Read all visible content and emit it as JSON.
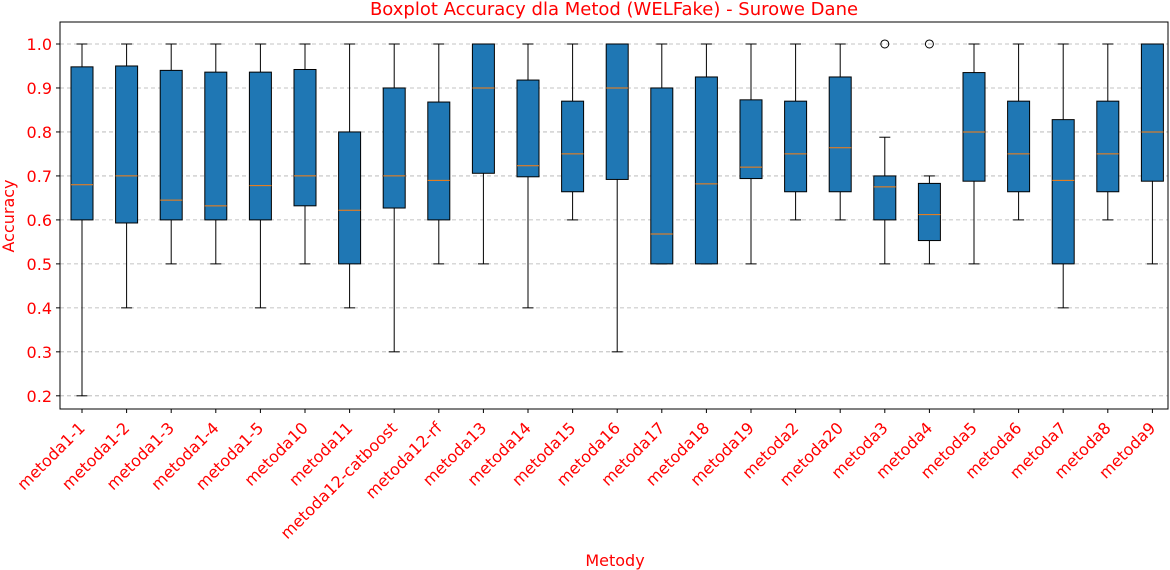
{
  "chart_data": {
    "type": "boxplot",
    "title": "Boxplot Accuracy dla Metod (WELFake) - Surowe Dane",
    "xlabel": "Metody",
    "ylabel": "Accuracy",
    "ylim": [
      0.17,
      1.05
    ],
    "yticks": [
      0.2,
      0.3,
      0.4,
      0.5,
      0.6,
      0.7,
      0.8,
      0.9,
      1.0
    ],
    "ytick_labels": [
      "0.2",
      "0.3",
      "0.4",
      "0.5",
      "0.6",
      "0.7",
      "0.8",
      "0.9",
      "1.0"
    ],
    "grid": "horizontal-dashed",
    "box_color": "#1f77b4",
    "median_color": "#ff7f0e",
    "text_color": "#ff0000",
    "categories": [
      "metoda1-1",
      "metoda1-2",
      "metoda1-3",
      "metoda1-4",
      "metoda1-5",
      "metoda10",
      "metoda11",
      "metoda12-catboost",
      "metoda12-rf",
      "metoda13",
      "metoda14",
      "metoda15",
      "metoda16",
      "metoda17",
      "metoda18",
      "metoda19",
      "metoda2",
      "metoda20",
      "metoda3",
      "metoda4",
      "metoda5",
      "metoda6",
      "metoda7",
      "metoda8",
      "metoda9"
    ],
    "boxes": [
      {
        "whislo": 0.2,
        "q1": 0.6,
        "med": 0.68,
        "q3": 0.948,
        "whishi": 1.0,
        "fliers": []
      },
      {
        "whislo": 0.4,
        "q1": 0.593,
        "med": 0.7,
        "q3": 0.95,
        "whishi": 1.0,
        "fliers": []
      },
      {
        "whislo": 0.5,
        "q1": 0.6,
        "med": 0.645,
        "q3": 0.94,
        "whishi": 1.0,
        "fliers": []
      },
      {
        "whislo": 0.5,
        "q1": 0.6,
        "med": 0.632,
        "q3": 0.936,
        "whishi": 1.0,
        "fliers": []
      },
      {
        "whislo": 0.4,
        "q1": 0.6,
        "med": 0.678,
        "q3": 0.936,
        "whishi": 1.0,
        "fliers": []
      },
      {
        "whislo": 0.5,
        "q1": 0.632,
        "med": 0.7,
        "q3": 0.942,
        "whishi": 1.0,
        "fliers": []
      },
      {
        "whislo": 0.4,
        "q1": 0.5,
        "med": 0.622,
        "q3": 0.8,
        "whishi": 1.0,
        "fliers": []
      },
      {
        "whislo": 0.3,
        "q1": 0.627,
        "med": 0.7,
        "q3": 0.9,
        "whishi": 1.0,
        "fliers": []
      },
      {
        "whislo": 0.5,
        "q1": 0.6,
        "med": 0.69,
        "q3": 0.868,
        "whishi": 1.0,
        "fliers": []
      },
      {
        "whislo": 0.5,
        "q1": 0.706,
        "med": 0.9,
        "q3": 1.0,
        "whishi": 1.0,
        "fliers": []
      },
      {
        "whislo": 0.4,
        "q1": 0.698,
        "med": 0.723,
        "q3": 0.918,
        "whishi": 1.0,
        "fliers": []
      },
      {
        "whislo": 0.6,
        "q1": 0.664,
        "med": 0.75,
        "q3": 0.87,
        "whishi": 1.0,
        "fliers": []
      },
      {
        "whislo": 0.3,
        "q1": 0.692,
        "med": 0.9,
        "q3": 1.0,
        "whishi": 1.0,
        "fliers": []
      },
      {
        "whislo": 0.5,
        "q1": 0.5,
        "med": 0.568,
        "q3": 0.9,
        "whishi": 1.0,
        "fliers": []
      },
      {
        "whislo": 0.5,
        "q1": 0.5,
        "med": 0.682,
        "q3": 0.925,
        "whishi": 1.0,
        "fliers": []
      },
      {
        "whislo": 0.5,
        "q1": 0.694,
        "med": 0.72,
        "q3": 0.873,
        "whishi": 1.0,
        "fliers": []
      },
      {
        "whislo": 0.6,
        "q1": 0.664,
        "med": 0.75,
        "q3": 0.87,
        "whishi": 1.0,
        "fliers": []
      },
      {
        "whislo": 0.6,
        "q1": 0.664,
        "med": 0.764,
        "q3": 0.925,
        "whishi": 1.0,
        "fliers": []
      },
      {
        "whislo": 0.5,
        "q1": 0.6,
        "med": 0.675,
        "q3": 0.7,
        "whishi": 0.788,
        "fliers": [
          1.0
        ]
      },
      {
        "whislo": 0.5,
        "q1": 0.553,
        "med": 0.612,
        "q3": 0.683,
        "whishi": 0.7,
        "fliers": [
          1.0
        ]
      },
      {
        "whislo": 0.5,
        "q1": 0.688,
        "med": 0.8,
        "q3": 0.935,
        "whishi": 1.0,
        "fliers": []
      },
      {
        "whislo": 0.6,
        "q1": 0.664,
        "med": 0.75,
        "q3": 0.87,
        "whishi": 1.0,
        "fliers": []
      },
      {
        "whislo": 0.4,
        "q1": 0.5,
        "med": 0.69,
        "q3": 0.828,
        "whishi": 1.0,
        "fliers": []
      },
      {
        "whislo": 0.6,
        "q1": 0.664,
        "med": 0.75,
        "q3": 0.87,
        "whishi": 1.0,
        "fliers": []
      },
      {
        "whislo": 0.5,
        "q1": 0.688,
        "med": 0.8,
        "q3": 1.0,
        "whishi": 1.0,
        "fliers": []
      }
    ]
  }
}
